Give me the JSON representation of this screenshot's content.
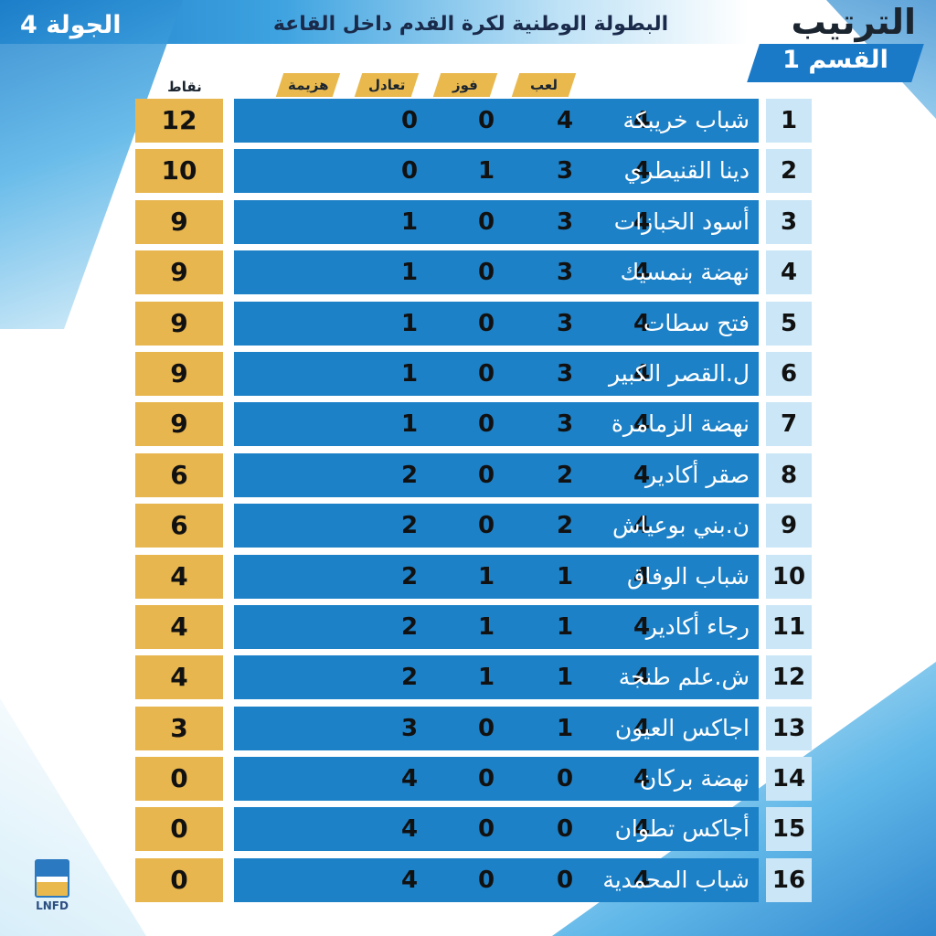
{
  "header": {
    "round": "الجولة 4",
    "title": "البطولة الوطنية لكرة القدم داخل القاعة",
    "ranking": "الترتيب",
    "division": "القسم 1"
  },
  "columns": {
    "played": "لعب",
    "won": "فوز",
    "draw": "تعادل",
    "lost": "هزيمة",
    "points": "نقاط"
  },
  "rows": [
    {
      "rank": "1",
      "team": "شباب خريبكة",
      "played": "4",
      "won": "4",
      "draw": "0",
      "lost": "0",
      "points": "12"
    },
    {
      "rank": "2",
      "team": "دينا القنيطري",
      "played": "4",
      "won": "3",
      "draw": "1",
      "lost": "0",
      "points": "10"
    },
    {
      "rank": "3",
      "team": "أسود الخبازات",
      "played": "4",
      "won": "3",
      "draw": "0",
      "lost": "1",
      "points": "9"
    },
    {
      "rank": "4",
      "team": "نهضة بنمسيك",
      "played": "4",
      "won": "3",
      "draw": "0",
      "lost": "1",
      "points": "9"
    },
    {
      "rank": "5",
      "team": "فتح سطات",
      "played": "4",
      "won": "3",
      "draw": "0",
      "lost": "1",
      "points": "9"
    },
    {
      "rank": "6",
      "team": "ل.القصر الكبير",
      "played": "4",
      "won": "3",
      "draw": "0",
      "lost": "1",
      "points": "9"
    },
    {
      "rank": "7",
      "team": "نهضة الزمامرة",
      "played": "4",
      "won": "3",
      "draw": "0",
      "lost": "1",
      "points": "9"
    },
    {
      "rank": "8",
      "team": "صقر أكادير",
      "played": "4",
      "won": "2",
      "draw": "0",
      "lost": "2",
      "points": "6"
    },
    {
      "rank": "9",
      "team": "ن.بني بوعياش",
      "played": "4",
      "won": "2",
      "draw": "0",
      "lost": "2",
      "points": "6"
    },
    {
      "rank": "10",
      "team": "شباب الوفاق",
      "played": "4",
      "won": "1",
      "draw": "1",
      "lost": "2",
      "points": "4"
    },
    {
      "rank": "11",
      "team": "رجاء أكادير",
      "played": "4",
      "won": "1",
      "draw": "1",
      "lost": "2",
      "points": "4"
    },
    {
      "rank": "12",
      "team": "ش.علم طنجة",
      "played": "4",
      "won": "1",
      "draw": "1",
      "lost": "2",
      "points": "4"
    },
    {
      "rank": "13",
      "team": "اجاكس العيون",
      "played": "4",
      "won": "1",
      "draw": "0",
      "lost": "3",
      "points": "3"
    },
    {
      "rank": "14",
      "team": "نهضة بركان",
      "played": "4",
      "won": "0",
      "draw": "0",
      "lost": "4",
      "points": "0"
    },
    {
      "rank": "15",
      "team": "أجاكس تطوان",
      "played": "4",
      "won": "0",
      "draw": "0",
      "lost": "4",
      "points": "0"
    },
    {
      "rank": "16",
      "team": "شباب المحمدية",
      "played": "4",
      "won": "0",
      "draw": "0",
      "lost": "4",
      "points": "0"
    }
  ],
  "logo": {
    "text": "LNFD"
  },
  "colors": {
    "primary_blue": "#1d81c7",
    "gold": "#e8b64f",
    "light_blue": "#cbe7f7"
  }
}
